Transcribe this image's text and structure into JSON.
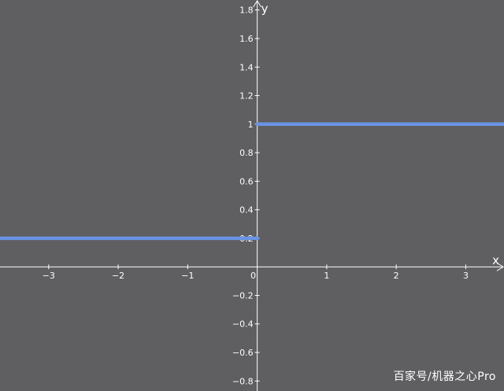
{
  "chart_data": {
    "type": "line",
    "title": "",
    "xlabel": "x",
    "ylabel": "y",
    "xlim": [
      -3.7,
      3.55
    ],
    "ylim": [
      -0.87,
      1.87
    ],
    "x_ticks": [
      -3,
      -2,
      -1,
      0,
      1,
      2,
      3
    ],
    "x_tick_labels": [
      "−3",
      "−2",
      "−1",
      "0",
      "1",
      "2",
      "3"
    ],
    "y_ticks": [
      -0.8,
      -0.6,
      -0.4,
      -0.2,
      0.2,
      0.4,
      0.6,
      0.8,
      1,
      1.2,
      1.4,
      1.6,
      1.8
    ],
    "y_tick_labels": [
      "−0.8",
      "−0.6",
      "−0.4",
      "−0.2",
      "0.2",
      "0.4",
      "0.6",
      "0.8",
      "1",
      "1.2",
      "1.4",
      "1.6",
      "1.8"
    ],
    "grid": false,
    "series": [
      {
        "segments": [
          {
            "x": [
              -3.7,
              0
            ],
            "y": [
              0.2,
              0.2
            ]
          },
          {
            "x": [
              0,
              3.55
            ],
            "y": [
              1,
              1
            ]
          }
        ]
      }
    ],
    "colors": {
      "background": "#5f5e60",
      "axis": "#ffffff",
      "line": "#6a94e4"
    }
  },
  "watermark": "百家号/机器之心Pro"
}
